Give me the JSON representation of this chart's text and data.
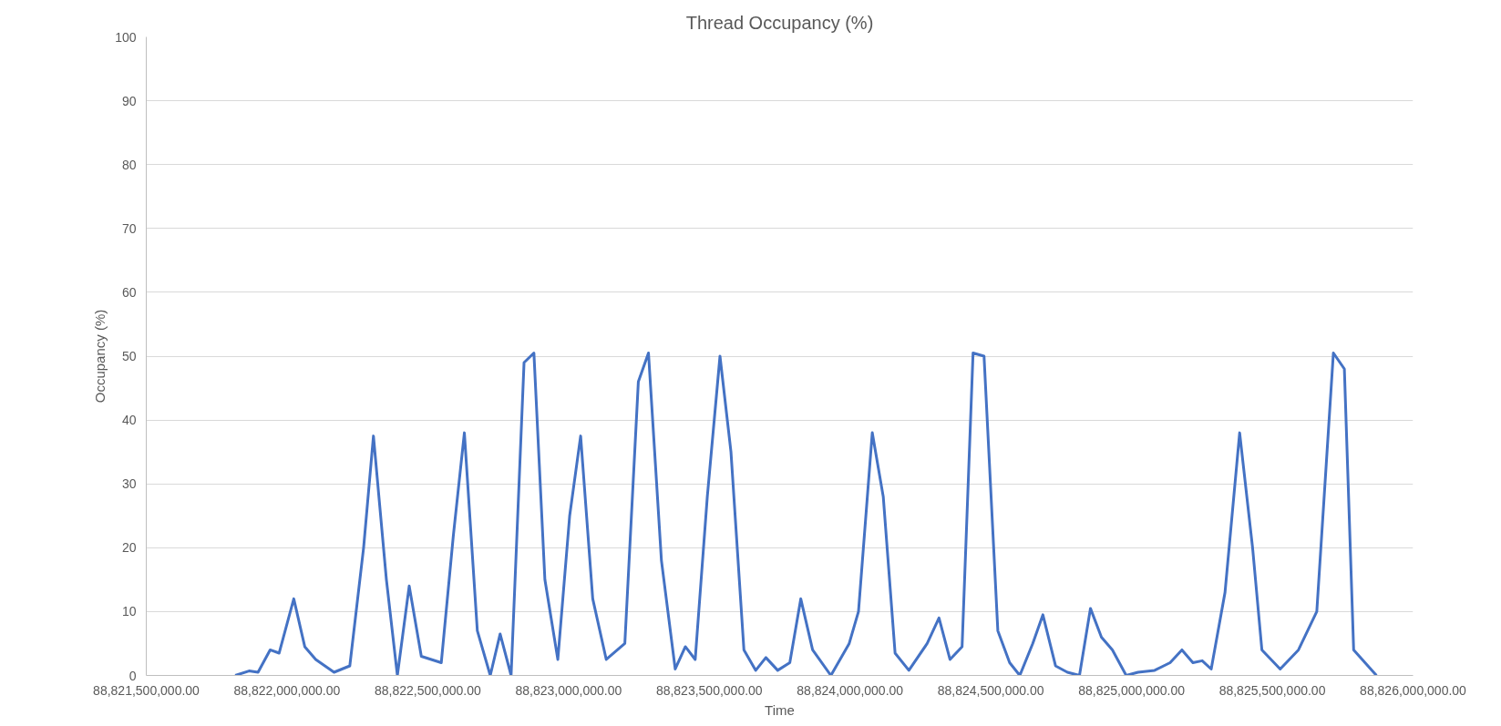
{
  "chart_data": {
    "type": "line",
    "title": "Thread Occupancy (%)",
    "xlabel": "Time",
    "ylabel": "Occupancy (%)",
    "xlim": [
      88821500000,
      88826000000
    ],
    "xticks": [
      {
        "value": 88821500000,
        "label": "88,821,500,000.00"
      },
      {
        "value": 88822000000,
        "label": "88,822,000,000.00"
      },
      {
        "value": 88822500000,
        "label": "88,822,500,000.00"
      },
      {
        "value": 88823000000,
        "label": "88,823,000,000.00"
      },
      {
        "value": 88823500000,
        "label": "88,823,500,000.00"
      },
      {
        "value": 88824000000,
        "label": "88,824,000,000.00"
      },
      {
        "value": 88824500000,
        "label": "88,824,500,000.00"
      },
      {
        "value": 88825000000,
        "label": "88,825,000,000.00"
      },
      {
        "value": 88825500000,
        "label": "88,825,500,000.00"
      },
      {
        "value": 88826000000,
        "label": "88,826,000,000.00"
      }
    ],
    "ylim": [
      0,
      100
    ],
    "yticks": [
      0,
      10,
      20,
      30,
      40,
      50,
      60,
      70,
      80,
      90,
      100
    ],
    "grid": "y",
    "marker": "none",
    "line_style": "solid",
    "x": [
      88821816000,
      88821865000,
      88821897000,
      88821940000,
      88821972000,
      88822024000,
      88822063000,
      88822102000,
      88822167000,
      88822223000,
      88822272000,
      88822307000,
      88822353000,
      88822392000,
      88822434000,
      88822477000,
      88822548000,
      88822591000,
      88822630000,
      88822676000,
      88822722000,
      88822757000,
      88822796000,
      88822842000,
      88822877000,
      88822916000,
      88822962000,
      88823004000,
      88823043000,
      88823086000,
      88823134000,
      88823200000,
      88823248000,
      88823284000,
      88823330000,
      88823379000,
      88823415000,
      88823450000,
      88823493000,
      88823538000,
      88823577000,
      88823623000,
      88823665000,
      88823701000,
      88823743000,
      88823786000,
      88823825000,
      88823867000,
      88823932000,
      88823997000,
      88824030000,
      88824079000,
      88824118000,
      88824160000,
      88824209000,
      88824274000,
      88824316000,
      88824355000,
      88824398000,
      88824437000,
      88824476000,
      88824525000,
      88824567000,
      88824603000,
      88824649000,
      88824685000,
      88824730000,
      88824772000,
      88824815000,
      88824854000,
      88824893000,
      88824932000,
      88824981000,
      88825023000,
      88825082000,
      88825137000,
      88825179000,
      88825218000,
      88825251000,
      88825283000,
      88825332000,
      88825384000,
      88825430000,
      88825463000,
      88825528000,
      88825593000,
      88825658000,
      88825717000,
      88825756000,
      88825789000,
      88825870000
    ],
    "series": [
      {
        "color": "#4472c4",
        "values": [
          0,
          0.7,
          0.5,
          4,
          3.5,
          12,
          4.5,
          2.5,
          0.5,
          1.5,
          20,
          37.5,
          15,
          0,
          14,
          3,
          2,
          22,
          38,
          7,
          0,
          6.5,
          0,
          49,
          50.5,
          15,
          2.5,
          25,
          37.5,
          12,
          2.5,
          5,
          46,
          50.5,
          18,
          1,
          4.5,
          2.5,
          28,
          50,
          35,
          4,
          0.8,
          2.8,
          0.8,
          2,
          12,
          4,
          0,
          5,
          10,
          38,
          28,
          3.5,
          0.8,
          5,
          9,
          2.5,
          4.5,
          50.5,
          50,
          7,
          2,
          0,
          5,
          9.5,
          1.5,
          0.5,
          0,
          10.5,
          6,
          4,
          0,
          0.5,
          0.8,
          2,
          4,
          2,
          2.3,
          1,
          13,
          38,
          20,
          4,
          1,
          4,
          10,
          50.5,
          48,
          4,
          0
        ]
      }
    ]
  }
}
